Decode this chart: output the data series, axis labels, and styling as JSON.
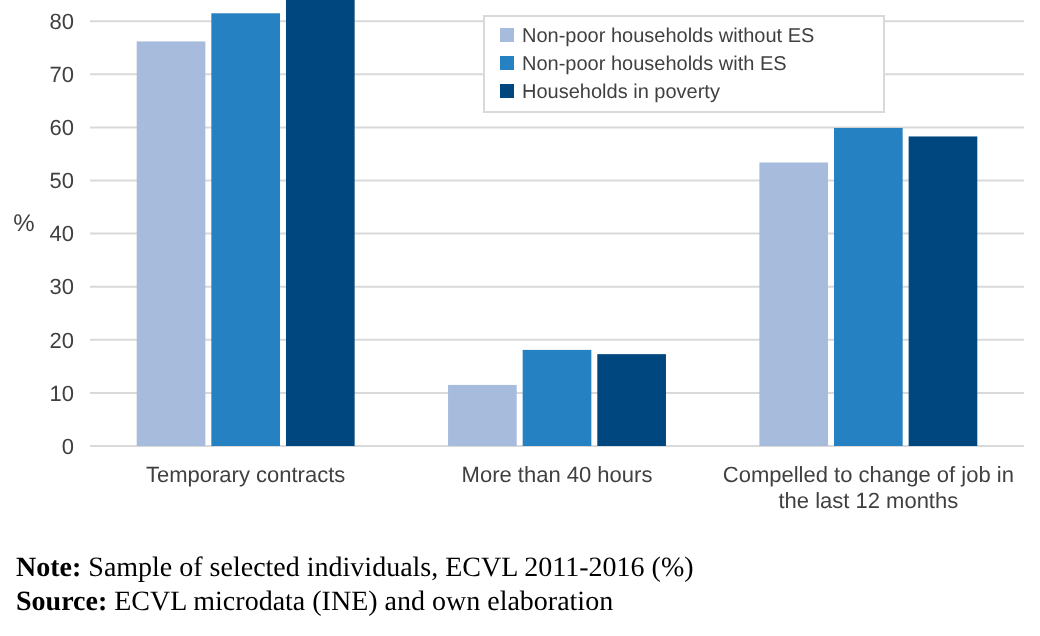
{
  "chart_data": {
    "type": "bar",
    "ylabel": "%",
    "categories": [
      "Temporary contracts",
      "More than 40 hours",
      "Compelled to change of job in the last 12 months"
    ],
    "series": [
      {
        "name": "Non-poor households without ES",
        "color": "#a7bcdc",
        "values": [
          76.2,
          11.5,
          53.4
        ]
      },
      {
        "name": "Non-poor households with ES",
        "color": "#2581c1",
        "values": [
          81.5,
          18.1,
          59.9
        ]
      },
      {
        "name": "Households in poverty",
        "color": "#00467f",
        "values": [
          84,
          17.3,
          58.3
        ]
      }
    ],
    "ylim": [
      0,
      84
    ],
    "yticks": [
      0,
      10,
      20,
      30,
      40,
      50,
      60,
      70,
      80
    ],
    "grid": "y",
    "legend": "top right",
    "annotations": [
      "Note: Sample of selected individuals, ECVL 2011-2016 (%)",
      "Source: ECVL microdata (INE) and own elaboration"
    ]
  }
}
